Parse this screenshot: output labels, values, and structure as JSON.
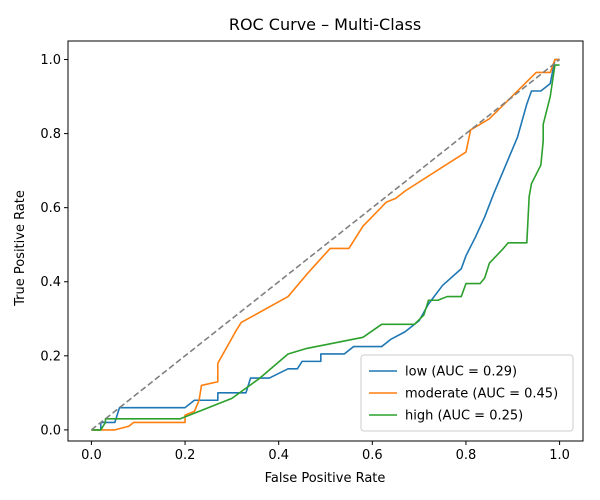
{
  "chart_data": {
    "type": "line",
    "title": "ROC Curve – Multi-Class",
    "xlabel": "False Positive Rate",
    "ylabel": "True Positive Rate",
    "xlim": [
      -0.05,
      1.05
    ],
    "ylim": [
      -0.03,
      1.05
    ],
    "xticks": [
      0.0,
      0.2,
      0.4,
      0.6,
      0.8,
      1.0
    ],
    "yticks": [
      0.0,
      0.2,
      0.4,
      0.6,
      0.8,
      1.0
    ],
    "xtick_labels": [
      "0.0",
      "0.2",
      "0.4",
      "0.6",
      "0.8",
      "1.0"
    ],
    "ytick_labels": [
      "0.0",
      "0.2",
      "0.4",
      "0.6",
      "0.8",
      "1.0"
    ],
    "grid": false,
    "legend_position": "lower-right",
    "diagonal": {
      "points": [
        [
          0,
          0
        ],
        [
          1,
          1
        ]
      ],
      "color": "#808080",
      "style": "dashed"
    },
    "series": [
      {
        "name": "low (AUC = 0.29)",
        "color": "#1f77b4",
        "points": [
          [
            0,
            0
          ],
          [
            0.02,
            0
          ],
          [
            0.02,
            0.02
          ],
          [
            0.05,
            0.02
          ],
          [
            0.06,
            0.06
          ],
          [
            0.2,
            0.06
          ],
          [
            0.22,
            0.08
          ],
          [
            0.27,
            0.08
          ],
          [
            0.27,
            0.1
          ],
          [
            0.33,
            0.1
          ],
          [
            0.34,
            0.14
          ],
          [
            0.38,
            0.14
          ],
          [
            0.42,
            0.165
          ],
          [
            0.44,
            0.165
          ],
          [
            0.45,
            0.185
          ],
          [
            0.49,
            0.185
          ],
          [
            0.49,
            0.205
          ],
          [
            0.54,
            0.205
          ],
          [
            0.56,
            0.225
          ],
          [
            0.62,
            0.225
          ],
          [
            0.64,
            0.245
          ],
          [
            0.67,
            0.265
          ],
          [
            0.7,
            0.295
          ],
          [
            0.72,
            0.34
          ],
          [
            0.75,
            0.39
          ],
          [
            0.79,
            0.435
          ],
          [
            0.8,
            0.47
          ],
          [
            0.82,
            0.52
          ],
          [
            0.84,
            0.575
          ],
          [
            0.86,
            0.64
          ],
          [
            0.88,
            0.7
          ],
          [
            0.91,
            0.79
          ],
          [
            0.93,
            0.88
          ],
          [
            0.94,
            0.915
          ],
          [
            0.96,
            0.915
          ],
          [
            0.98,
            0.935
          ],
          [
            0.99,
            1.0
          ],
          [
            1.0,
            1.0
          ]
        ]
      },
      {
        "name": "moderate (AUC = 0.45)",
        "color": "#ff7f0e",
        "points": [
          [
            0,
            0
          ],
          [
            0.05,
            0
          ],
          [
            0.08,
            0.01
          ],
          [
            0.09,
            0.02
          ],
          [
            0.2,
            0.02
          ],
          [
            0.2,
            0.04
          ],
          [
            0.22,
            0.05
          ],
          [
            0.23,
            0.08
          ],
          [
            0.235,
            0.12
          ],
          [
            0.27,
            0.13
          ],
          [
            0.27,
            0.18
          ],
          [
            0.31,
            0.27
          ],
          [
            0.32,
            0.29
          ],
          [
            0.42,
            0.36
          ],
          [
            0.46,
            0.42
          ],
          [
            0.51,
            0.49
          ],
          [
            0.55,
            0.49
          ],
          [
            0.58,
            0.55
          ],
          [
            0.63,
            0.615
          ],
          [
            0.65,
            0.625
          ],
          [
            0.67,
            0.645
          ],
          [
            0.8,
            0.75
          ],
          [
            0.81,
            0.81
          ],
          [
            0.85,
            0.84
          ],
          [
            0.95,
            0.965
          ],
          [
            0.98,
            0.965
          ],
          [
            0.99,
            1.0
          ],
          [
            1.0,
            1.0
          ]
        ]
      },
      {
        "name": "high (AUC = 0.25)",
        "color": "#2ca02c",
        "points": [
          [
            0,
            0
          ],
          [
            0.02,
            0
          ],
          [
            0.03,
            0.02
          ],
          [
            0.03,
            0.03
          ],
          [
            0.19,
            0.03
          ],
          [
            0.2,
            0.035
          ],
          [
            0.24,
            0.055
          ],
          [
            0.3,
            0.085
          ],
          [
            0.36,
            0.14
          ],
          [
            0.42,
            0.205
          ],
          [
            0.46,
            0.22
          ],
          [
            0.58,
            0.25
          ],
          [
            0.62,
            0.285
          ],
          [
            0.69,
            0.285
          ],
          [
            0.71,
            0.31
          ],
          [
            0.72,
            0.35
          ],
          [
            0.74,
            0.35
          ],
          [
            0.76,
            0.36
          ],
          [
            0.79,
            0.36
          ],
          [
            0.8,
            0.395
          ],
          [
            0.83,
            0.395
          ],
          [
            0.84,
            0.41
          ],
          [
            0.85,
            0.45
          ],
          [
            0.88,
            0.49
          ],
          [
            0.89,
            0.505
          ],
          [
            0.93,
            0.505
          ],
          [
            0.935,
            0.63
          ],
          [
            0.94,
            0.665
          ],
          [
            0.96,
            0.715
          ],
          [
            0.965,
            0.78
          ],
          [
            0.965,
            0.825
          ],
          [
            0.98,
            0.9
          ],
          [
            0.99,
            0.985
          ],
          [
            1.0,
            0.985
          ]
        ]
      }
    ]
  }
}
